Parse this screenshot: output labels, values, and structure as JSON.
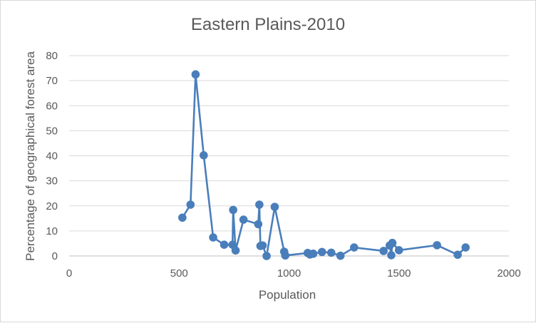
{
  "chart_data": {
    "type": "line",
    "title": "Eastern Plains-2010",
    "xlabel": "Population",
    "ylabel": "Percentage of geographical forest area",
    "xlim": [
      0,
      2000
    ],
    "ylim": [
      0,
      80
    ],
    "x_ticks": [
      0,
      500,
      1000,
      1500,
      2000
    ],
    "y_ticks": [
      0,
      10,
      20,
      30,
      40,
      50,
      60,
      70,
      80
    ],
    "grid": true,
    "legend": "none",
    "series_color": "#4a7ebb",
    "series": [
      {
        "x": [
          515,
          552,
          575,
          612,
          655,
          705,
          743,
          746,
          757,
          793,
          860,
          865,
          870,
          880,
          898,
          935,
          978,
          983,
          1085,
          1095,
          1110,
          1150,
          1192,
          1234,
          1296,
          1430,
          1458,
          1465,
          1470,
          1500,
          1673,
          1767,
          1803
        ],
        "y": [
          15.3,
          20.5,
          72.5,
          40.2,
          7.4,
          4.5,
          4.5,
          18.4,
          2.2,
          14.5,
          12.7,
          20.5,
          4.0,
          4.2,
          0.0,
          19.6,
          1.7,
          0.2,
          1.2,
          0.6,
          0.9,
          1.6,
          1.3,
          0.1,
          3.4,
          2.0,
          4.2,
          0.3,
          5.2,
          2.3,
          4.3,
          0.5,
          3.4
        ]
      }
    ]
  }
}
